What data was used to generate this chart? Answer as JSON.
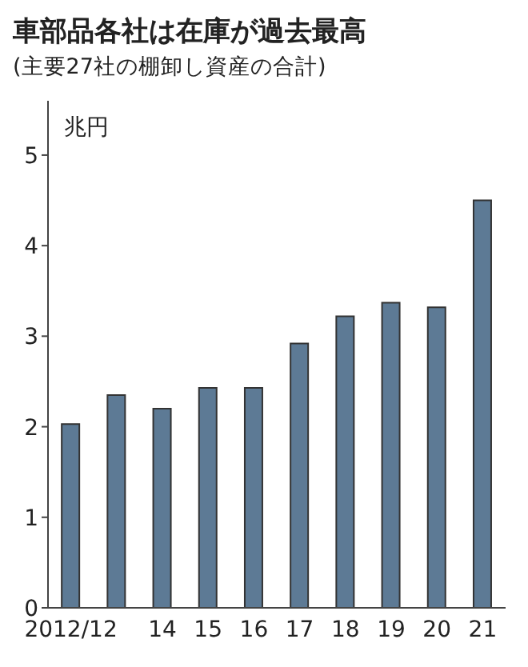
{
  "chart_data": {
    "type": "bar",
    "title": "車部品各社は在庫が過去最高",
    "subtitle": "(主要27社の棚卸し資産の合計)",
    "ylabel": "兆円",
    "categories": [
      "2012/12",
      null,
      "14",
      "15",
      "16",
      "17",
      "18",
      "19",
      "20",
      "21"
    ],
    "values": [
      2.03,
      2.35,
      2.2,
      2.43,
      2.43,
      2.92,
      3.22,
      3.37,
      3.32,
      4.5
    ],
    "color": "#5d7a95",
    "ylim": [
      0,
      5.6
    ],
    "yticks": [
      0,
      1,
      2,
      3,
      4,
      5
    ],
    "grid": false
  }
}
